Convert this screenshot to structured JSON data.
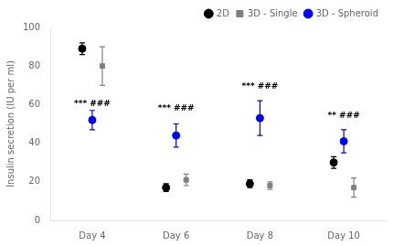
{
  "chart_data": {
    "type": "scatter",
    "categories": [
      "Day 4",
      "Day 6",
      "Day 8",
      "Day 10"
    ],
    "series": [
      {
        "name": "2D",
        "color": "#000000",
        "marker": "circle",
        "values": [
          89,
          17,
          19,
          30
        ],
        "errors": [
          3,
          2,
          2,
          3
        ]
      },
      {
        "name": "3D - Single",
        "color": "#808080",
        "marker": "square",
        "values": [
          80,
          21,
          18,
          17
        ],
        "errors": [
          10,
          3,
          2,
          5
        ]
      },
      {
        "name": "3D - Spheroid",
        "color": "#0000ff",
        "marker": "circle",
        "values": [
          52,
          44,
          53,
          41
        ],
        "errors": [
          5,
          6,
          9,
          6
        ]
      }
    ],
    "annotations": [
      {
        "category": "Day 4",
        "y": 58,
        "text": "*** ###"
      },
      {
        "category": "Day 6",
        "y": 56,
        "text": "*** ###"
      },
      {
        "category": "Day 8",
        "y": 67,
        "text": "*** ###"
      },
      {
        "category": "Day 10",
        "y": 52,
        "text": "** ###"
      }
    ],
    "ylabel": "Insulin secretion (IU per ml)",
    "ylim": [
      0,
      100
    ],
    "yticks": [
      0,
      20,
      40,
      60,
      80,
      100
    ],
    "grid": false,
    "legend": "upper right"
  }
}
